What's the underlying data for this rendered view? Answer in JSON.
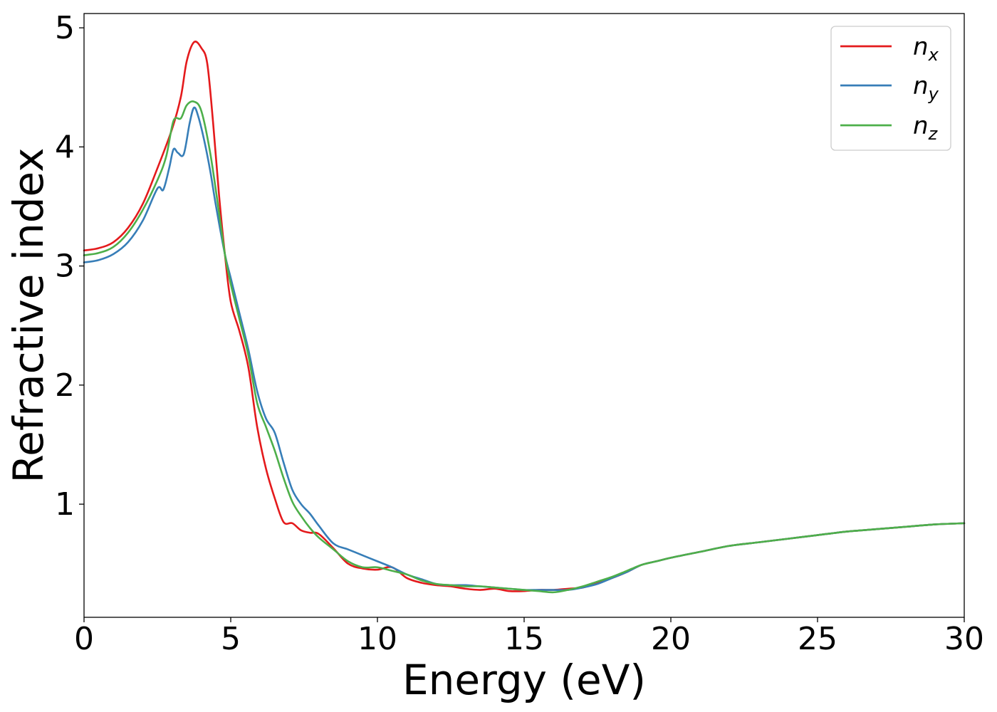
{
  "chart_data": {
    "type": "line",
    "title": "",
    "xlabel": "Energy (eV)",
    "ylabel": "Refractive index",
    "xlim": [
      0,
      30
    ],
    "ylim": [
      0.05,
      5.12
    ],
    "xticks": [
      0,
      5,
      10,
      15,
      20,
      25,
      30
    ],
    "yticks": [
      1,
      2,
      3,
      4,
      5
    ],
    "grid": false,
    "legend_position": "top-right",
    "series": [
      {
        "base": "n",
        "sub": "x",
        "color": "#e41a1c",
        "points": [
          [
            0,
            3.13
          ],
          [
            0.5,
            3.15
          ],
          [
            1,
            3.2
          ],
          [
            1.5,
            3.32
          ],
          [
            2,
            3.52
          ],
          [
            2.5,
            3.82
          ],
          [
            3,
            4.15
          ],
          [
            3.3,
            4.42
          ],
          [
            3.5,
            4.72
          ],
          [
            3.75,
            4.88
          ],
          [
            4,
            4.83
          ],
          [
            4.2,
            4.7
          ],
          [
            4.4,
            4.2
          ],
          [
            4.6,
            3.6
          ],
          [
            4.8,
            3.1
          ],
          [
            5,
            2.7
          ],
          [
            5.3,
            2.45
          ],
          [
            5.6,
            2.15
          ],
          [
            5.9,
            1.65
          ],
          [
            6.2,
            1.3
          ],
          [
            6.5,
            1.05
          ],
          [
            6.8,
            0.85
          ],
          [
            7.1,
            0.84
          ],
          [
            7.4,
            0.78
          ],
          [
            7.7,
            0.76
          ],
          [
            8,
            0.75
          ],
          [
            8.5,
            0.63
          ],
          [
            9,
            0.5
          ],
          [
            9.5,
            0.46
          ],
          [
            10,
            0.45
          ],
          [
            10.5,
            0.47
          ],
          [
            11,
            0.38
          ],
          [
            11.5,
            0.34
          ],
          [
            12,
            0.32
          ],
          [
            12.5,
            0.31
          ],
          [
            13,
            0.29
          ],
          [
            13.5,
            0.28
          ],
          [
            14,
            0.29
          ],
          [
            14.5,
            0.27
          ],
          [
            15,
            0.27
          ],
          [
            15.5,
            0.28
          ],
          [
            16,
            0.28
          ],
          [
            16.5,
            0.29
          ],
          [
            17,
            0.3
          ],
          [
            17.5,
            0.34
          ],
          [
            18,
            0.38
          ],
          [
            18.5,
            0.43
          ],
          [
            19,
            0.49
          ],
          [
            19.5,
            0.52
          ],
          [
            20,
            0.55
          ],
          [
            21,
            0.6
          ],
          [
            22,
            0.65
          ],
          [
            23,
            0.68
          ],
          [
            24,
            0.71
          ],
          [
            25,
            0.74
          ],
          [
            26,
            0.77
          ],
          [
            27,
            0.79
          ],
          [
            28,
            0.81
          ],
          [
            29,
            0.83
          ],
          [
            30,
            0.84
          ]
        ]
      },
      {
        "base": "n",
        "sub": "y",
        "color": "#377eb8",
        "points": [
          [
            0,
            3.03
          ],
          [
            0.5,
            3.05
          ],
          [
            1,
            3.1
          ],
          [
            1.5,
            3.2
          ],
          [
            2,
            3.38
          ],
          [
            2.5,
            3.65
          ],
          [
            2.7,
            3.64
          ],
          [
            2.9,
            3.82
          ],
          [
            3.05,
            3.98
          ],
          [
            3.2,
            3.95
          ],
          [
            3.4,
            3.94
          ],
          [
            3.6,
            4.2
          ],
          [
            3.75,
            4.33
          ],
          [
            3.9,
            4.25
          ],
          [
            4.1,
            4.05
          ],
          [
            4.3,
            3.8
          ],
          [
            4.5,
            3.5
          ],
          [
            4.8,
            3.1
          ],
          [
            5,
            2.9
          ],
          [
            5.3,
            2.6
          ],
          [
            5.6,
            2.3
          ],
          [
            5.9,
            1.95
          ],
          [
            6.2,
            1.72
          ],
          [
            6.5,
            1.6
          ],
          [
            6.8,
            1.35
          ],
          [
            7.1,
            1.12
          ],
          [
            7.4,
            1.0
          ],
          [
            7.7,
            0.92
          ],
          [
            8,
            0.82
          ],
          [
            8.5,
            0.67
          ],
          [
            9,
            0.62
          ],
          [
            9.5,
            0.57
          ],
          [
            10,
            0.52
          ],
          [
            10.5,
            0.47
          ],
          [
            11,
            0.41
          ],
          [
            11.5,
            0.37
          ],
          [
            12,
            0.33
          ],
          [
            12.5,
            0.32
          ],
          [
            13,
            0.32
          ],
          [
            13.5,
            0.31
          ],
          [
            14,
            0.3
          ],
          [
            14.5,
            0.29
          ],
          [
            15,
            0.28
          ],
          [
            15.5,
            0.28
          ],
          [
            16,
            0.28
          ],
          [
            16.5,
            0.28
          ],
          [
            17,
            0.3
          ],
          [
            17.5,
            0.33
          ],
          [
            18,
            0.38
          ],
          [
            18.5,
            0.43
          ],
          [
            19,
            0.49
          ],
          [
            19.5,
            0.52
          ],
          [
            20,
            0.55
          ],
          [
            21,
            0.6
          ],
          [
            22,
            0.65
          ],
          [
            23,
            0.68
          ],
          [
            24,
            0.71
          ],
          [
            25,
            0.74
          ],
          [
            26,
            0.77
          ],
          [
            27,
            0.79
          ],
          [
            28,
            0.81
          ],
          [
            29,
            0.83
          ],
          [
            30,
            0.84
          ]
        ]
      },
      {
        "base": "n",
        "sub": "z",
        "color": "#4daf4a",
        "points": [
          [
            0,
            3.09
          ],
          [
            0.5,
            3.11
          ],
          [
            1,
            3.16
          ],
          [
            1.5,
            3.28
          ],
          [
            2,
            3.47
          ],
          [
            2.5,
            3.72
          ],
          [
            2.8,
            3.92
          ],
          [
            3.05,
            4.22
          ],
          [
            3.3,
            4.24
          ],
          [
            3.5,
            4.35
          ],
          [
            3.75,
            4.38
          ],
          [
            4,
            4.3
          ],
          [
            4.3,
            3.95
          ],
          [
            4.6,
            3.45
          ],
          [
            4.8,
            3.1
          ],
          [
            5,
            2.85
          ],
          [
            5.3,
            2.55
          ],
          [
            5.6,
            2.25
          ],
          [
            5.9,
            1.85
          ],
          [
            6.2,
            1.65
          ],
          [
            6.5,
            1.45
          ],
          [
            6.8,
            1.22
          ],
          [
            7.1,
            1.02
          ],
          [
            7.4,
            0.9
          ],
          [
            7.7,
            0.8
          ],
          [
            8,
            0.72
          ],
          [
            8.5,
            0.62
          ],
          [
            9,
            0.52
          ],
          [
            9.5,
            0.47
          ],
          [
            10,
            0.47
          ],
          [
            10.5,
            0.44
          ],
          [
            11,
            0.41
          ],
          [
            11.5,
            0.36
          ],
          [
            12,
            0.33
          ],
          [
            12.5,
            0.32
          ],
          [
            13,
            0.31
          ],
          [
            13.5,
            0.31
          ],
          [
            14,
            0.3
          ],
          [
            14.5,
            0.29
          ],
          [
            15,
            0.28
          ],
          [
            15.5,
            0.27
          ],
          [
            16,
            0.26
          ],
          [
            16.5,
            0.28
          ],
          [
            17,
            0.31
          ],
          [
            17.5,
            0.35
          ],
          [
            18,
            0.39
          ],
          [
            18.5,
            0.44
          ],
          [
            19,
            0.49
          ],
          [
            19.5,
            0.52
          ],
          [
            20,
            0.55
          ],
          [
            21,
            0.6
          ],
          [
            22,
            0.65
          ],
          [
            23,
            0.68
          ],
          [
            24,
            0.71
          ],
          [
            25,
            0.74
          ],
          [
            26,
            0.77
          ],
          [
            27,
            0.79
          ],
          [
            28,
            0.81
          ],
          [
            29,
            0.83
          ],
          [
            30,
            0.84
          ]
        ]
      }
    ]
  }
}
